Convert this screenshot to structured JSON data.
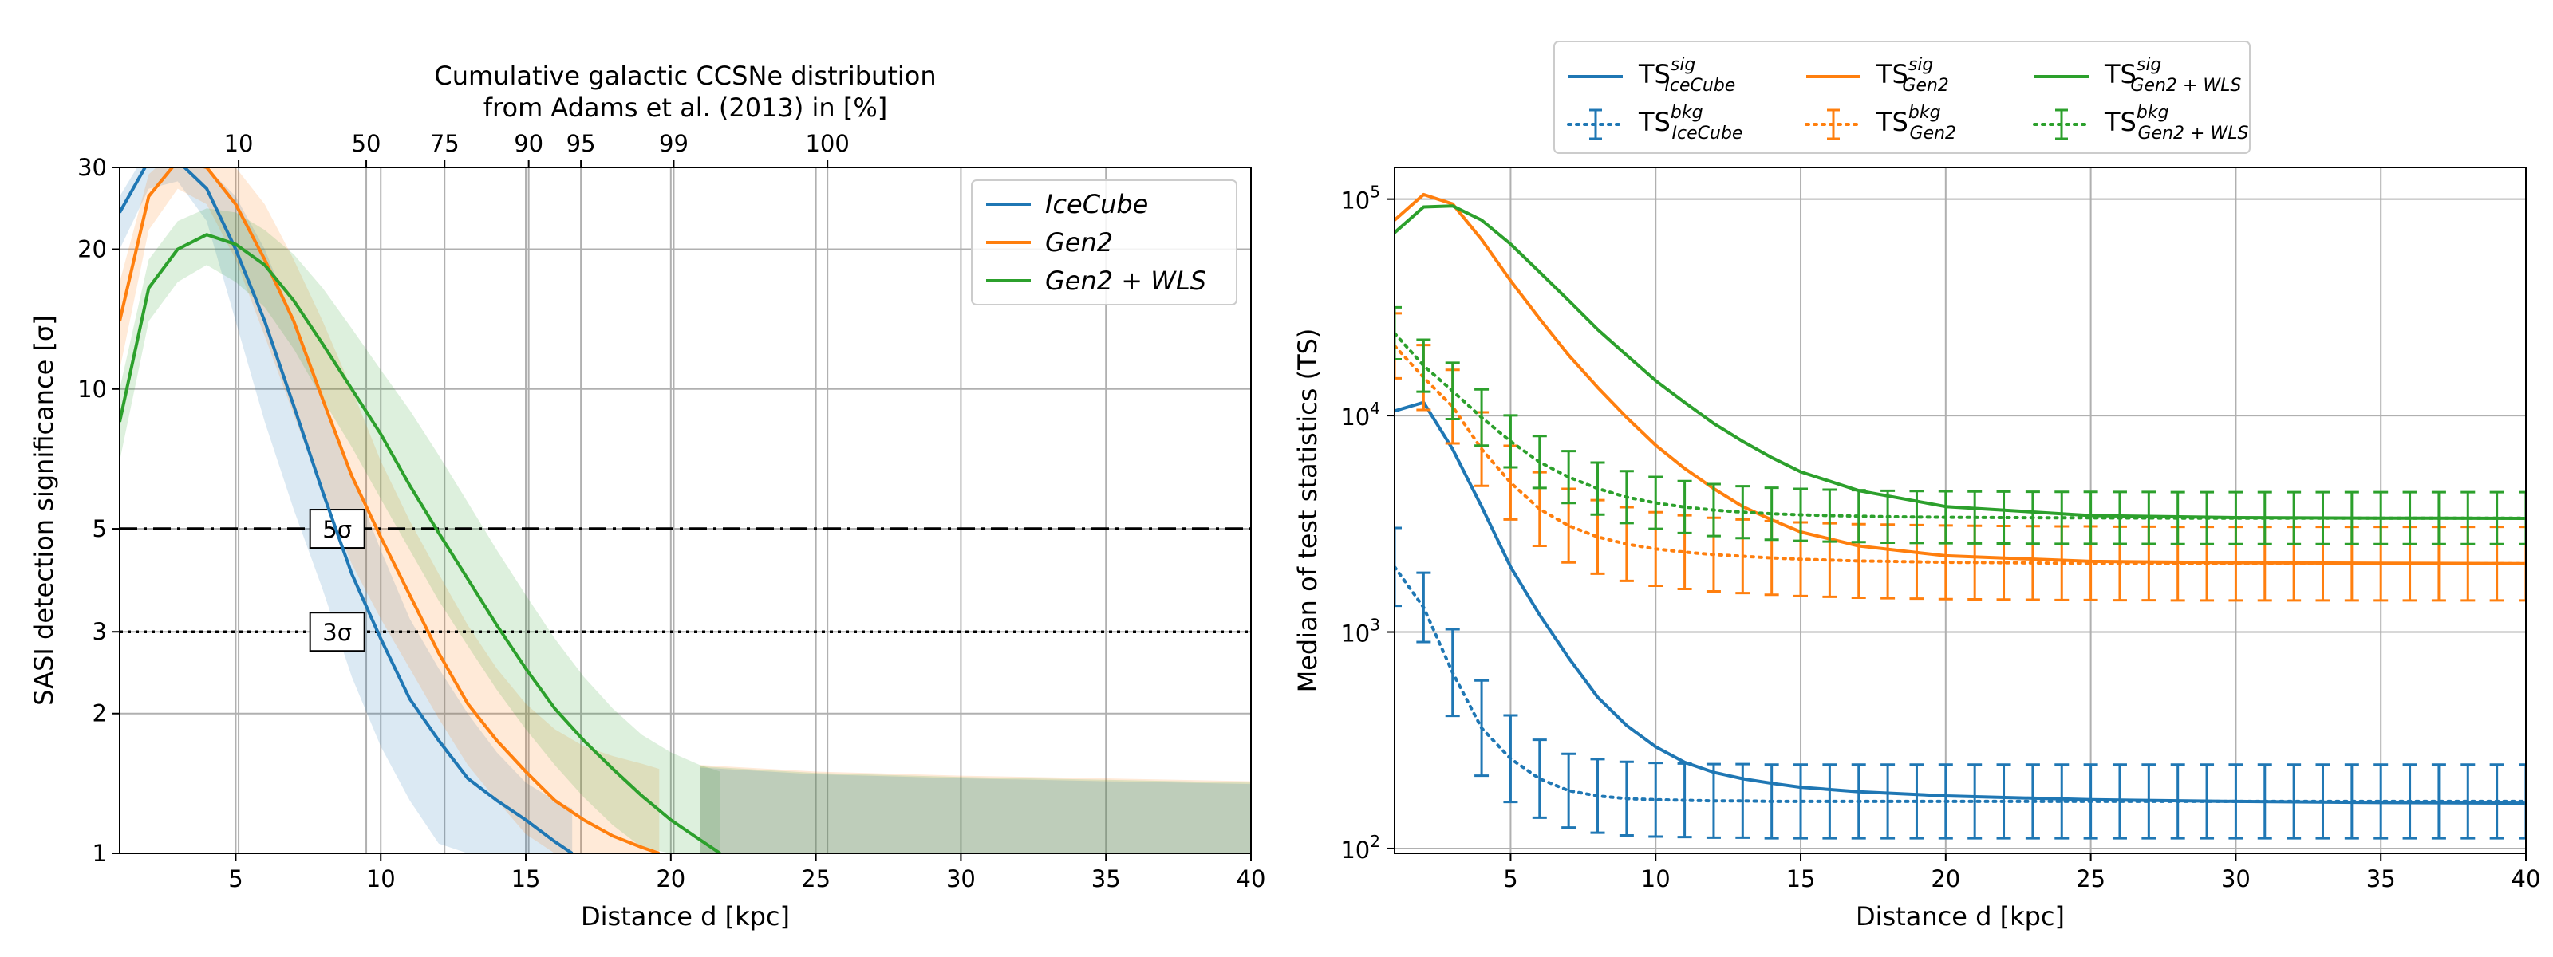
{
  "chart_data": [
    {
      "type": "line",
      "top_title_line1": "Cumulative galactic CCSNe distribution",
      "top_title_line2": "from Adams et al. (2013) in [%]",
      "xlabel": "Distance d [kpc]",
      "ylabel": "SASI detection significance [σ]",
      "y_scale": "log",
      "xlim": [
        1,
        40
      ],
      "ylim": [
        1,
        30
      ],
      "grid": true,
      "legend_position": "top-right",
      "x_ticks": [
        5,
        10,
        15,
        20,
        25,
        30,
        35,
        40
      ],
      "y_ticks": [
        1,
        2,
        3,
        5,
        10,
        20,
        30
      ],
      "top_ticks": [
        {
          "d": 5.1,
          "label": "10"
        },
        {
          "d": 9.5,
          "label": "50"
        },
        {
          "d": 12.2,
          "label": "75"
        },
        {
          "d": 15.1,
          "label": "90"
        },
        {
          "d": 16.9,
          "label": "95"
        },
        {
          "d": 20.1,
          "label": "99"
        },
        {
          "d": 25.4,
          "label": "100"
        }
      ],
      "thresholds": [
        {
          "value": 5,
          "label": "5σ",
          "style": "dashdot",
          "label_x": 8.5
        },
        {
          "value": 3,
          "label": "3σ",
          "style": "dotted",
          "label_x": 8.5
        }
      ],
      "series": [
        {
          "name": "IceCube",
          "color": "#1f77b4",
          "x": [
            1,
            2,
            3,
            4,
            5,
            6,
            7,
            8,
            9,
            10,
            11,
            12,
            13,
            14,
            15,
            16,
            16.6
          ],
          "y": [
            24,
            31,
            31,
            27,
            20,
            14,
            9.2,
            6.0,
            4.0,
            2.9,
            2.15,
            1.75,
            1.45,
            1.3,
            1.18,
            1.06,
            1.0
          ],
          "band_upper": [
            26,
            33,
            33,
            30,
            26,
            20,
            14,
            9.5,
            6.5,
            4.5,
            3.2,
            2.5,
            2.0,
            1.65,
            1.42,
            1.3,
            1.25
          ],
          "band_lower": [
            20,
            27,
            28,
            23,
            14,
            8.5,
            5.5,
            3.7,
            2.4,
            1.7,
            1.3,
            1.05,
            1.0,
            1.0,
            1.0,
            1.0,
            1.0
          ]
        },
        {
          "name": "Gen2",
          "color": "#ff7f0e",
          "x": [
            1,
            2,
            3,
            4,
            5,
            6,
            7,
            8,
            9,
            10,
            11,
            12,
            13,
            14,
            15,
            16,
            17,
            18,
            19,
            19.6
          ],
          "y": [
            14,
            26,
            31,
            30,
            25,
            19,
            14,
            9.5,
            6.5,
            4.8,
            3.6,
            2.7,
            2.1,
            1.75,
            1.5,
            1.3,
            1.18,
            1.09,
            1.03,
            1.0
          ],
          "band_upper": [
            17,
            29,
            33,
            33,
            30,
            25,
            19,
            14,
            10,
            7.0,
            5.2,
            4.0,
            3.1,
            2.5,
            2.1,
            1.85,
            1.7,
            1.62,
            1.56,
            1.52
          ],
          "band_lower": [
            11,
            22,
            27,
            25,
            19,
            13,
            8.8,
            6.0,
            4.2,
            3.2,
            2.5,
            1.95,
            1.55,
            1.3,
            1.1,
            1.0,
            1.0,
            1.0,
            1.0,
            1.0
          ]
        },
        {
          "name": "Gen2 + WLS",
          "color": "#2ca02c",
          "x": [
            1,
            2,
            3,
            4,
            5,
            6,
            7,
            8,
            9,
            10,
            11,
            12,
            13,
            14,
            15,
            16,
            17,
            18,
            19,
            20,
            21,
            21.7
          ],
          "y": [
            8.5,
            16.5,
            20,
            21.5,
            20.5,
            18.5,
            15.5,
            12.5,
            10,
            8.0,
            6.2,
            4.9,
            3.9,
            3.1,
            2.5,
            2.05,
            1.75,
            1.52,
            1.33,
            1.18,
            1.07,
            1.0
          ],
          "band_upper": [
            10,
            19,
            23,
            24.5,
            24,
            22,
            19.5,
            16.5,
            13.5,
            11,
            9.0,
            7.2,
            5.7,
            4.5,
            3.6,
            2.9,
            2.4,
            2.05,
            1.8,
            1.65,
            1.55,
            1.5
          ],
          "band_lower": [
            7,
            14,
            17,
            18.5,
            17,
            15,
            12.2,
            9.5,
            7.5,
            5.8,
            4.5,
            3.5,
            2.8,
            2.25,
            1.85,
            1.55,
            1.32,
            1.15,
            1.03,
            1.0,
            1.0,
            1.0
          ]
        }
      ],
      "plateau": {
        "x": [
          21,
          25,
          30,
          35,
          40
        ],
        "upper": [
          1.55,
          1.5,
          1.47,
          1.45,
          1.43
        ],
        "lower": [
          1.0,
          1.0,
          1.0,
          1.0,
          1.0
        ]
      }
    },
    {
      "type": "line",
      "xlabel": "Distance d [kpc]",
      "ylabel": "Median of test statistics (TS)",
      "y_scale": "log",
      "xlim": [
        1,
        40
      ],
      "ylim": [
        95,
        140000
      ],
      "grid": true,
      "legend_position": "top (outside, 3 columns)",
      "x_ticks": [
        5,
        10,
        15,
        20,
        25,
        30,
        35,
        40
      ],
      "y_ticks": [
        {
          "value": 100,
          "base": "10",
          "exp": "2"
        },
        {
          "value": 1000,
          "base": "10",
          "exp": "3"
        },
        {
          "value": 10000,
          "base": "10",
          "exp": "4"
        },
        {
          "value": 100000,
          "base": "10",
          "exp": "5"
        }
      ],
      "legend": [
        {
          "base": "TS",
          "sup": "sig",
          "sub": "IceCube",
          "color": "#1f77b4",
          "kind": "line"
        },
        {
          "base": "TS",
          "sup": "sig",
          "sub": "Gen2",
          "color": "#ff7f0e",
          "kind": "line"
        },
        {
          "base": "TS",
          "sup": "sig",
          "sub": "Gen2 + WLS",
          "color": "#2ca02c",
          "kind": "line"
        },
        {
          "base": "TS",
          "sup": "bkg",
          "sub": "IceCube",
          "color": "#1f77b4",
          "kind": "errorbar"
        },
        {
          "base": "TS",
          "sup": "bkg",
          "sub": "Gen2",
          "color": "#ff7f0e",
          "kind": "errorbar"
        },
        {
          "base": "TS",
          "sup": "bkg",
          "sub": "Gen2 + WLS",
          "color": "#2ca02c",
          "kind": "errorbar"
        }
      ],
      "sig_series": [
        {
          "name": "IceCube sig",
          "color": "#1f77b4",
          "x": [
            1,
            2,
            3,
            4,
            5,
            6,
            7,
            8,
            9,
            10,
            11,
            12,
            13,
            14,
            15,
            17,
            20,
            25,
            30,
            35,
            40
          ],
          "y": [
            10500,
            11500,
            7000,
            3800,
            2000,
            1200,
            760,
            500,
            370,
            295,
            250,
            225,
            210,
            200,
            192,
            183,
            175,
            168,
            165,
            163,
            162
          ]
        },
        {
          "name": "Gen2 sig",
          "color": "#ff7f0e",
          "x": [
            1,
            2,
            3,
            4,
            5,
            6,
            7,
            8,
            9,
            10,
            11,
            12,
            13,
            14,
            15,
            17,
            20,
            25,
            30,
            35,
            40
          ],
          "y": [
            80000,
            105000,
            95000,
            65000,
            42000,
            28000,
            19000,
            13500,
            9800,
            7300,
            5700,
            4600,
            3800,
            3300,
            2900,
            2500,
            2250,
            2120,
            2090,
            2080,
            2070
          ]
        },
        {
          "name": "Gen2 + WLS sig",
          "color": "#2ca02c",
          "x": [
            1,
            2,
            3,
            4,
            5,
            6,
            7,
            8,
            9,
            10,
            11,
            12,
            13,
            14,
            15,
            17,
            20,
            25,
            30,
            35,
            40
          ],
          "y": [
            70000,
            92000,
            93000,
            80000,
            62000,
            46000,
            34000,
            25000,
            19000,
            14500,
            11500,
            9200,
            7600,
            6400,
            5500,
            4500,
            3800,
            3450,
            3380,
            3360,
            3350
          ]
        }
      ],
      "bkg_series": [
        {
          "name": "IceCube bkg",
          "color": "#1f77b4",
          "x": [
            1,
            2,
            3,
            4,
            5,
            6,
            7,
            8,
            9,
            10,
            11,
            12,
            13,
            14,
            15,
            16,
            17,
            18,
            19,
            20,
            21,
            22,
            23,
            24,
            25,
            26,
            27,
            28,
            29,
            30,
            31,
            32,
            33,
            34,
            35,
            36,
            37,
            38,
            39,
            40
          ],
          "y": [
            2000,
            1300,
            650,
            360,
            260,
            210,
            185,
            175,
            170,
            168,
            167,
            166,
            166,
            165,
            165,
            165,
            165,
            165,
            165,
            165,
            165,
            165,
            165,
            165,
            165,
            165,
            165,
            165,
            165,
            165,
            165,
            165,
            165,
            165,
            165,
            165,
            165,
            165,
            165,
            165
          ],
          "err": [
            0.18,
            0.16,
            0.2,
            0.22,
            0.2,
            0.18,
            0.17,
            0.17,
            0.17,
            0.17,
            0.17,
            0.17,
            0.17,
            0.17,
            0.17,
            0.17,
            0.17,
            0.17,
            0.17,
            0.17,
            0.17,
            0.17,
            0.17,
            0.17,
            0.17,
            0.17,
            0.17,
            0.17,
            0.17,
            0.17,
            0.17,
            0.17,
            0.17,
            0.17,
            0.17,
            0.17,
            0.17,
            0.17,
            0.17,
            0.17
          ]
        },
        {
          "name": "Gen2 bkg",
          "color": "#ff7f0e",
          "x": [
            1,
            2,
            3,
            4,
            5,
            6,
            7,
            8,
            9,
            10,
            11,
            12,
            13,
            14,
            15,
            16,
            17,
            18,
            19,
            20,
            21,
            22,
            23,
            24,
            25,
            26,
            27,
            28,
            29,
            30,
            31,
            32,
            33,
            34,
            35,
            36,
            37,
            38,
            39,
            40
          ],
          "y": [
            21000,
            15000,
            11000,
            7000,
            4900,
            3700,
            3100,
            2750,
            2550,
            2420,
            2340,
            2280,
            2240,
            2200,
            2170,
            2150,
            2130,
            2120,
            2110,
            2100,
            2095,
            2090,
            2085,
            2080,
            2080,
            2075,
            2075,
            2070,
            2070,
            2070,
            2070,
            2070,
            2070,
            2070,
            2070,
            2070,
            2070,
            2070,
            2070,
            2070
          ],
          "err": [
            0.15,
            0.15,
            0.17,
            0.17,
            0.17,
            0.17,
            0.17,
            0.17,
            0.17,
            0.17,
            0.17,
            0.17,
            0.17,
            0.17,
            0.17,
            0.17,
            0.17,
            0.17,
            0.17,
            0.17,
            0.17,
            0.17,
            0.17,
            0.17,
            0.17,
            0.17,
            0.17,
            0.17,
            0.17,
            0.17,
            0.17,
            0.17,
            0.17,
            0.17,
            0.17,
            0.17,
            0.17,
            0.17,
            0.17,
            0.17
          ]
        },
        {
          "name": "Gen2 + WLS bkg",
          "color": "#2ca02c",
          "x": [
            1,
            2,
            3,
            4,
            5,
            6,
            7,
            8,
            9,
            10,
            11,
            12,
            13,
            14,
            15,
            16,
            17,
            18,
            19,
            20,
            21,
            22,
            23,
            24,
            25,
            26,
            27,
            28,
            29,
            30,
            31,
            32,
            33,
            34,
            35,
            36,
            37,
            38,
            39,
            40
          ],
          "y": [
            24000,
            17000,
            13000,
            9800,
            7600,
            6100,
            5200,
            4600,
            4200,
            3950,
            3780,
            3660,
            3580,
            3520,
            3480,
            3450,
            3430,
            3410,
            3400,
            3390,
            3385,
            3380,
            3375,
            3370,
            3370,
            3365,
            3365,
            3360,
            3360,
            3360,
            3360,
            3360,
            3360,
            3360,
            3360,
            3360,
            3360,
            3360,
            3360,
            3360
          ],
          "err": [
            0.12,
            0.12,
            0.13,
            0.13,
            0.12,
            0.12,
            0.12,
            0.12,
            0.12,
            0.12,
            0.12,
            0.12,
            0.12,
            0.12,
            0.12,
            0.12,
            0.12,
            0.12,
            0.12,
            0.12,
            0.12,
            0.12,
            0.12,
            0.12,
            0.12,
            0.12,
            0.12,
            0.12,
            0.12,
            0.12,
            0.12,
            0.12,
            0.12,
            0.12,
            0.12,
            0.12,
            0.12,
            0.12,
            0.12,
            0.12
          ]
        }
      ]
    }
  ]
}
